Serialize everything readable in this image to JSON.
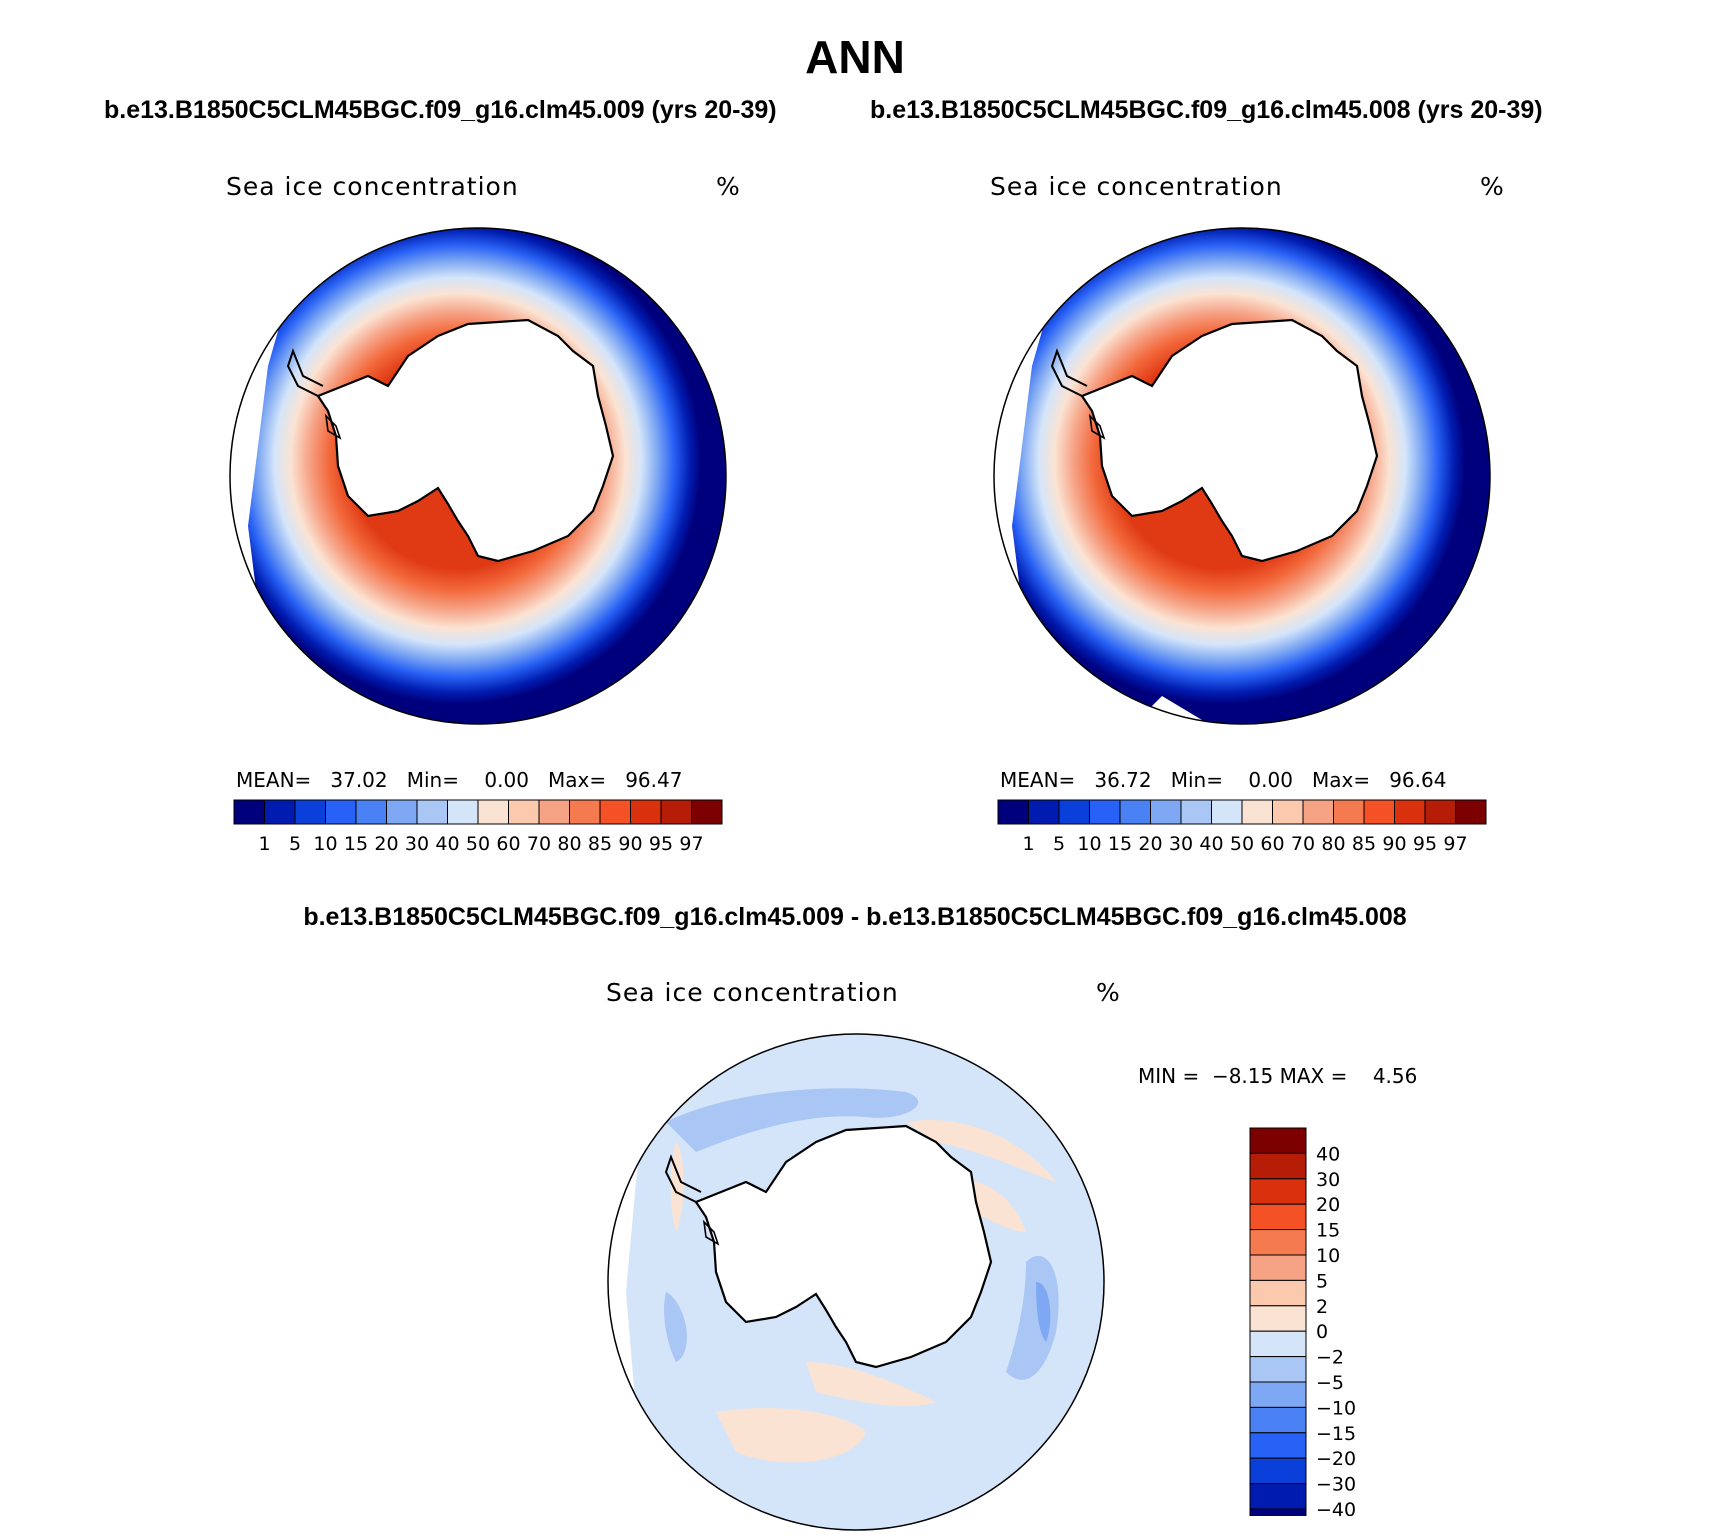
{
  "title": "ANN",
  "panels": [
    {
      "subtitle": "b.e13.B1850C5CLM45BGC.f09_g16.clm45.009 (yrs 20-39)",
      "variable": "Sea ice concentration",
      "units": "%",
      "mean_label": "MEAN=",
      "mean_value": "37.02",
      "min_label": "Min=",
      "min_value": "0.00",
      "max_label": "Max=",
      "max_value": "96.47"
    },
    {
      "subtitle": "b.e13.B1850C5CLM45BGC.f09_g16.clm45.008 (yrs 20-39)",
      "variable": "Sea ice concentration",
      "units": "%",
      "mean_label": "MEAN=",
      "mean_value": "36.72",
      "min_label": "Min=",
      "min_value": "0.00",
      "max_label": "Max=",
      "max_value": "96.64"
    }
  ],
  "difference": {
    "title": "b.e13.B1850C5CLM45BGC.f09_g16.clm45.009 - b.e13.B1850C5CLM45BGC.f09_g16.clm45.008",
    "variable": "Sea ice concentration",
    "units": "%",
    "min_label": "MIN =",
    "min_value": "−8.15",
    "max_label": "MAX =",
    "max_value": "4.56"
  },
  "chart_data": [
    {
      "type": "heatmap",
      "projection": "south-polar-stereographic",
      "title": "Sea ice concentration",
      "units": "%",
      "stats": {
        "mean": 37.02,
        "min": 0.0,
        "max": 96.47
      },
      "colorbar": {
        "orientation": "horizontal",
        "levels": [
          "1",
          "5",
          "10",
          "15",
          "20",
          "30",
          "40",
          "50",
          "60",
          "70",
          "80",
          "85",
          "90",
          "95",
          "97"
        ],
        "colors": [
          "#00007d",
          "#001cb0",
          "#0a3fd9",
          "#2861f5",
          "#4a82f5",
          "#7ea8f3",
          "#a9c6f4",
          "#d4e5fa",
          "#fbe3d3",
          "#fbc9ae",
          "#f6a285",
          "#f67a50",
          "#f45126",
          "#d9300e",
          "#b51d06",
          "#7d0000"
        ]
      }
    },
    {
      "type": "heatmap",
      "projection": "south-polar-stereographic",
      "title": "Sea ice concentration",
      "units": "%",
      "stats": {
        "mean": 36.72,
        "min": 0.0,
        "max": 96.64
      },
      "colorbar": {
        "orientation": "horizontal",
        "levels": [
          "1",
          "5",
          "10",
          "15",
          "20",
          "30",
          "40",
          "50",
          "60",
          "70",
          "80",
          "85",
          "90",
          "95",
          "97"
        ],
        "colors": [
          "#00007d",
          "#001cb0",
          "#0a3fd9",
          "#2861f5",
          "#4a82f5",
          "#7ea8f3",
          "#a9c6f4",
          "#d4e5fa",
          "#fbe3d3",
          "#fbc9ae",
          "#f6a285",
          "#f67a50",
          "#f45126",
          "#d9300e",
          "#b51d06",
          "#7d0000"
        ]
      }
    },
    {
      "type": "heatmap",
      "projection": "south-polar-stereographic",
      "title": "Sea ice concentration",
      "units": "%",
      "stats": {
        "min": -8.15,
        "max": 4.56
      },
      "colorbar": {
        "orientation": "vertical",
        "levels": [
          "40",
          "30",
          "20",
          "15",
          "10",
          "5",
          "2",
          "0",
          "−2",
          "−5",
          "−10",
          "−15",
          "−20",
          "−30",
          "−40"
        ],
        "colors": [
          "#7d0000",
          "#b51d06",
          "#d9300e",
          "#f45126",
          "#f67a50",
          "#f6a285",
          "#fbc9ae",
          "#fbe3d3",
          "#d4e5fa",
          "#a9c6f4",
          "#7ea8f3",
          "#4a82f5",
          "#2861f5",
          "#0a3fd9",
          "#001cb0",
          "#00007d"
        ]
      }
    }
  ]
}
